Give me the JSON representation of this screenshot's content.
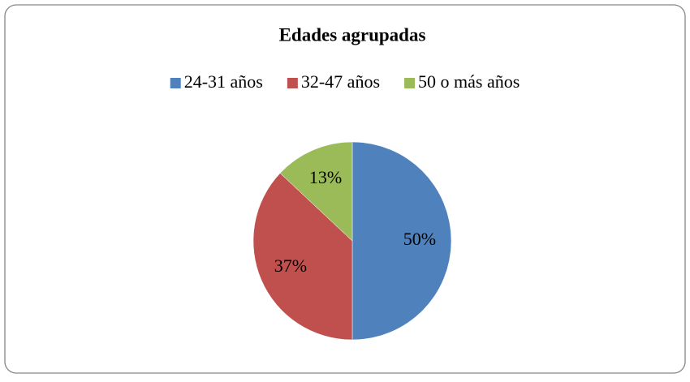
{
  "chart_data": {
    "type": "pie",
    "title": "Edades agrupadas",
    "categories": [
      "24-31 años",
      "32-47 años",
      "50 o más años"
    ],
    "values": [
      50,
      37,
      13
    ],
    "value_labels": [
      "50%",
      "37%",
      "13%"
    ],
    "colors": [
      "#4f81bd",
      "#c0504d",
      "#9bbb59"
    ],
    "legend": "top"
  }
}
